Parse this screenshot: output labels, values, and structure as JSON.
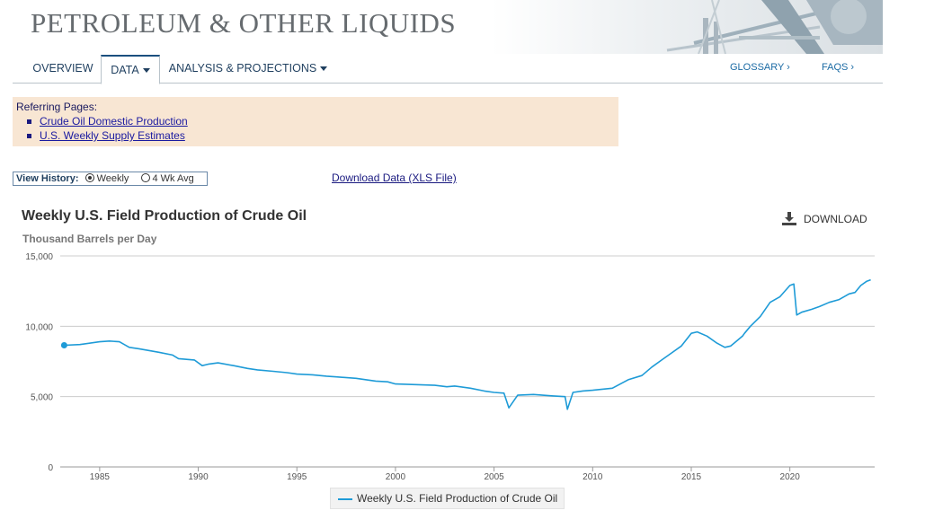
{
  "header": {
    "title": "PETROLEUM & OTHER LIQUIDS"
  },
  "nav": {
    "overview": "OVERVIEW",
    "data": "DATA",
    "analysis": "ANALYSIS & PROJECTIONS",
    "glossary": "GLOSSARY ›",
    "faqs": "FAQS ›"
  },
  "referring": {
    "title": "Referring Pages:",
    "links": [
      "Crude Oil Domestic Production",
      "U.S. Weekly Supply Estimates"
    ]
  },
  "view_history": {
    "label": "View History:",
    "options": [
      "Weekly",
      "4 Wk Avg"
    ],
    "selected": "Weekly"
  },
  "download_xls": "Download Data (XLS File)",
  "download_button": "DOWNLOAD",
  "colors": {
    "series": "#1e9bd7",
    "grid": "#cccccc"
  },
  "chart_data": {
    "type": "line",
    "title": "Weekly U.S. Field Production of Crude Oil",
    "ylabel": "Thousand Barrels per Day",
    "xlabel": "",
    "xlim": [
      1983.0,
      2024.3
    ],
    "ylim": [
      0,
      15000
    ],
    "y_ticks": [
      "0",
      "5,000",
      "10,000",
      "15,000"
    ],
    "y_tick_values": [
      0,
      5000,
      10000,
      15000
    ],
    "x_ticks": [
      "1985",
      "1990",
      "1995",
      "2000",
      "2005",
      "2010",
      "2015",
      "2020"
    ],
    "x_tick_values": [
      1985,
      1990,
      1995,
      2000,
      2005,
      2010,
      2015,
      2020
    ],
    "grid": true,
    "legend": "bottom-center",
    "series": [
      {
        "name": "Weekly U.S. Field Production of Crude Oil",
        "x": [
          1983.2,
          1984.0,
          1985.0,
          1985.5,
          1986.0,
          1986.5,
          1987.0,
          1988.0,
          1988.7,
          1989.0,
          1989.8,
          1990.2,
          1990.5,
          1991.0,
          1991.8,
          1992.5,
          1993.0,
          1993.8,
          1994.5,
          1995.0,
          1995.8,
          1996.5,
          1997.0,
          1998.0,
          1999.0,
          1999.6,
          2000.0,
          2001.0,
          2002.0,
          2002.6,
          2003.0,
          2003.8,
          2004.5,
          2005.0,
          2005.5,
          2005.75,
          2006.2,
          2007.0,
          2008.0,
          2008.6,
          2008.72,
          2009.0,
          2009.5,
          2010.0,
          2011.0,
          2011.8,
          2012.5,
          2013.0,
          2013.5,
          2014.0,
          2014.5,
          2015.0,
          2015.3,
          2015.8,
          2016.3,
          2016.7,
          2017.0,
          2017.6,
          2017.7,
          2018.0,
          2018.5,
          2019.0,
          2019.5,
          2020.0,
          2020.2,
          2020.35,
          2020.6,
          2021.1,
          2021.5,
          2022.0,
          2022.5,
          2023.0,
          2023.3,
          2023.6,
          2023.9,
          2024.1
        ],
        "values": [
          8650,
          8700,
          8900,
          8950,
          8900,
          8500,
          8400,
          8150,
          7950,
          7700,
          7600,
          7200,
          7300,
          7400,
          7200,
          7000,
          6900,
          6800,
          6700,
          6600,
          6550,
          6450,
          6400,
          6300,
          6100,
          6050,
          5900,
          5850,
          5800,
          5700,
          5750,
          5600,
          5400,
          5300,
          5250,
          4200,
          5100,
          5150,
          5050,
          5000,
          4100,
          5300,
          5400,
          5450,
          5600,
          6200,
          6500,
          7100,
          7600,
          8100,
          8600,
          9500,
          9600,
          9300,
          8800,
          8500,
          8600,
          9300,
          9500,
          10000,
          10700,
          11700,
          12100,
          12900,
          13000,
          10800,
          11000,
          11200,
          11400,
          11700,
          11900,
          12300,
          12400,
          12900,
          13200,
          13300
        ]
      }
    ]
  }
}
